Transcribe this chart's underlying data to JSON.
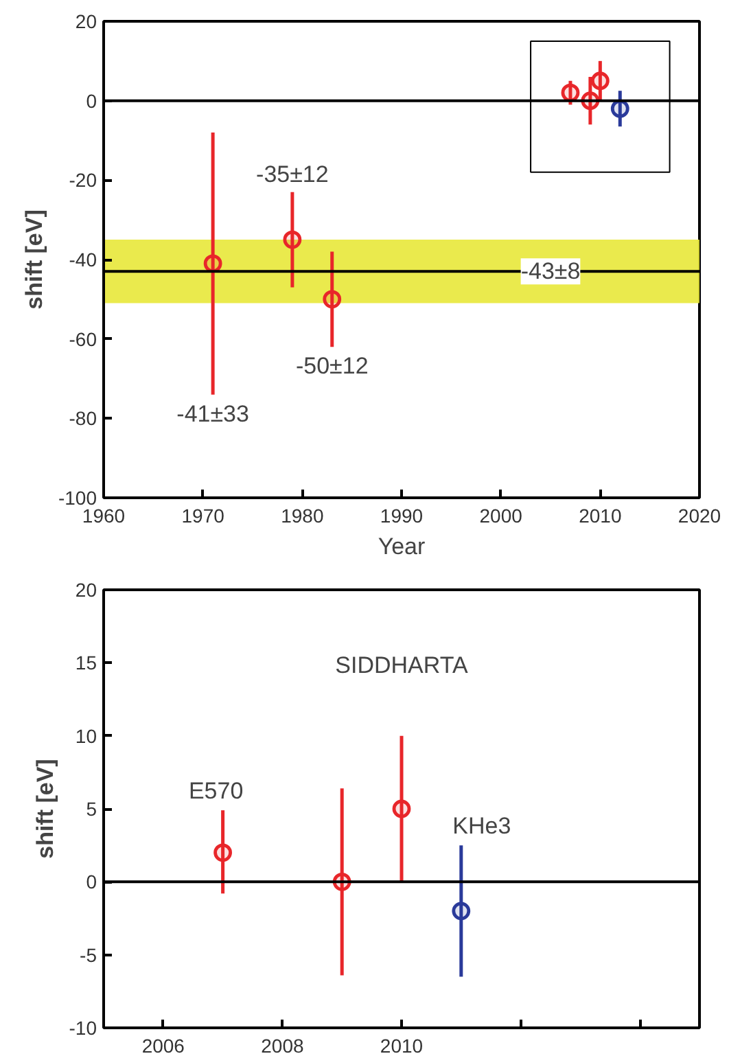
{
  "chart_data": [
    {
      "type": "scatter",
      "ylabel": "shift [eV]",
      "xlabel": "Year",
      "xlim": [
        1960,
        2020
      ],
      "xticks": [
        1960,
        1970,
        1980,
        1990,
        2000,
        2010,
        2020
      ],
      "ylim": [
        -100,
        20
      ],
      "yticks": [
        -100,
        -80,
        -60,
        -40,
        -20,
        0,
        20
      ],
      "grid": false,
      "marker": "circle",
      "series": [
        {
          "color": "#e8262a",
          "x": [
            1971,
            1979,
            1983,
            2007,
            2009,
            2010
          ],
          "values": [
            -41,
            -35,
            -50,
            2,
            0,
            5
          ],
          "errors": [
            [
              -74,
              -8
            ],
            [
              -47,
              -23
            ],
            [
              -62,
              -38
            ],
            [
              -1,
              5
            ],
            [
              -6,
              6
            ],
            [
              0,
              10
            ]
          ]
        },
        {
          "color": "#2a3a9a",
          "x": [
            2012
          ],
          "values": [
            -2
          ],
          "errors": [
            [
              -6.5,
              2.5
            ]
          ]
        }
      ],
      "ref_lines": [
        {
          "axis": "y",
          "value": 0,
          "label": null,
          "color": "#000000"
        },
        {
          "axis": "y",
          "value": -43,
          "label": "-43±8",
          "color": "#000000"
        }
      ],
      "bands": [
        {
          "axis": "y",
          "from": -51,
          "to": -35,
          "label": null,
          "color": "#e8e83a"
        }
      ],
      "annotations": [
        {
          "text": "-41±33",
          "x": 1971,
          "y": -74
        },
        {
          "text": "-35±12",
          "x": 1979,
          "y": -23
        },
        {
          "text": "-50±12",
          "x": 1983,
          "y": -62
        }
      ]
    },
    {
      "type": "scatter",
      "ylabel": "shift [eV]",
      "xlim": [
        2005,
        2015
      ],
      "xticks": [
        2006,
        2008,
        2010,
        {
          "value": 2012,
          "label": null
        },
        {
          "value": 2014,
          "label": null
        }
      ],
      "ylim": [
        -10,
        20
      ],
      "yticks": [
        -10,
        -5,
        0,
        5,
        10,
        15,
        20
      ],
      "grid": false,
      "marker": "circle",
      "series": [
        {
          "color": "#e8262a",
          "x": [
            2007,
            2009,
            2010
          ],
          "values": [
            2,
            0,
            5
          ],
          "errors": [
            [
              -0.8,
              4.9
            ],
            [
              -6.4,
              6.4
            ],
            [
              0,
              10
            ]
          ]
        },
        {
          "color": "#2a3a9a",
          "x": [
            2011
          ],
          "values": [
            -2
          ],
          "errors": [
            [
              -6.5,
              2.5
            ]
          ]
        }
      ],
      "ref_lines": [
        {
          "axis": "y",
          "value": 0,
          "label": null,
          "color": "#000000"
        }
      ],
      "annotations": [
        "SIDDHARTA",
        {
          "text": "E570",
          "x": 2007,
          "y": 4.9
        },
        {
          "text": "KHe3",
          "x": 2011,
          "y": 2.5
        }
      ]
    }
  ]
}
